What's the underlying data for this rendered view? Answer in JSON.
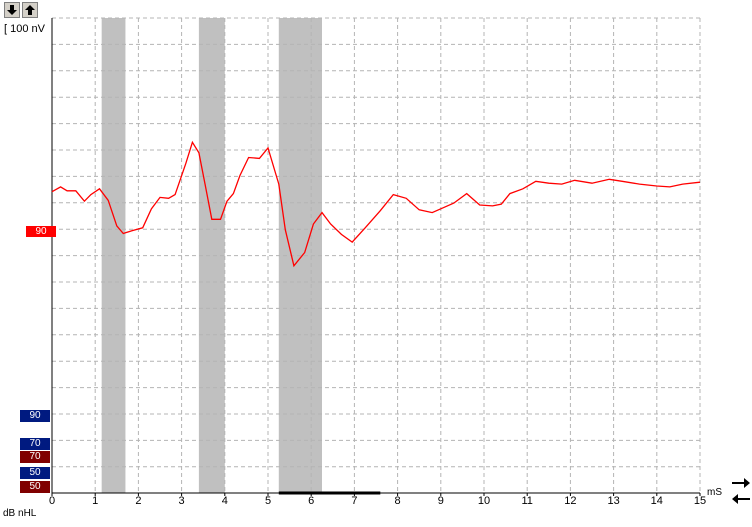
{
  "toolbar": {
    "scale_down_icon": "arrow-down-icon",
    "scale_up_icon": "arrow-up-icon",
    "right_arrow_icon": "arrow-right-icon",
    "left_arrow_icon": "arrow-left-icon"
  },
  "plot": {
    "scale_label": "[ 100 nV",
    "x_unit": "mS",
    "level_unit": "dB nHL",
    "x_ticks": [
      "0",
      "1",
      "2",
      "3",
      "4",
      "5",
      "6",
      "7",
      "8",
      "9",
      "10",
      "11",
      "12",
      "13",
      "14",
      "15"
    ]
  },
  "chart_data": {
    "type": "line",
    "xlabel": "mS",
    "ylabel": "",
    "xlim": [
      0,
      15
    ],
    "grid": true,
    "trace_color": "#ff0000",
    "shaded_windows_ms": [
      [
        1.15,
        1.7
      ],
      [
        3.4,
        4.0
      ],
      [
        5.25,
        6.25
      ]
    ],
    "series": [
      {
        "x": [
          0,
          0.2,
          0.35,
          0.55,
          0.75,
          0.9,
          1.1,
          1.3,
          1.5,
          1.65,
          1.85,
          2.1,
          2.3,
          2.5,
          2.7,
          2.85,
          3.1,
          3.25,
          3.4,
          3.55,
          3.7,
          3.9,
          4.05,
          4.2,
          4.35,
          4.55,
          4.8,
          5.0,
          5.25,
          5.4,
          5.6,
          5.85,
          6.05,
          6.25,
          6.45,
          6.7,
          6.95,
          7.25,
          7.6,
          7.9,
          8.2,
          8.5,
          8.8,
          9.0,
          9.3,
          9.6,
          9.9,
          10.2,
          10.4,
          10.6,
          10.9,
          11.2,
          11.5,
          11.8,
          12.1,
          12.5,
          12.9,
          13.2,
          13.6,
          14.0,
          14.3,
          14.6,
          15.0
        ],
        "y": [
          0.7,
          0.95,
          0.75,
          0.75,
          0.2,
          0.55,
          0.85,
          0.25,
          -1.1,
          -1.5,
          -1.35,
          -1.2,
          -0.2,
          0.4,
          0.35,
          0.55,
          2.2,
          3.3,
          2.75,
          1.0,
          -0.75,
          -0.75,
          0.2,
          0.6,
          1.55,
          2.5,
          2.45,
          3.0,
          1.1,
          -1.3,
          -3.2,
          -2.5,
          -1.0,
          -0.4,
          -1.0,
          -1.55,
          -1.95,
          -1.2,
          -0.3,
          0.55,
          0.35,
          -0.25,
          -0.4,
          -0.2,
          0.1,
          0.6,
          0.0,
          -0.05,
          0.05,
          0.6,
          0.85,
          1.25,
          1.15,
          1.1,
          1.3,
          1.15,
          1.35,
          1.25,
          1.1,
          1.0,
          0.95,
          1.1,
          1.2
        ]
      }
    ]
  },
  "levels": {
    "active_trace": {
      "label": "90",
      "color": "#ff0000"
    },
    "stack": [
      {
        "label": "90",
        "color": "#001a80"
      },
      {
        "label": "70",
        "color": "#001a80"
      },
      {
        "label": "70",
        "color": "#800000"
      },
      {
        "label": "50",
        "color": "#001a80"
      },
      {
        "label": "50",
        "color": "#800000"
      }
    ]
  }
}
